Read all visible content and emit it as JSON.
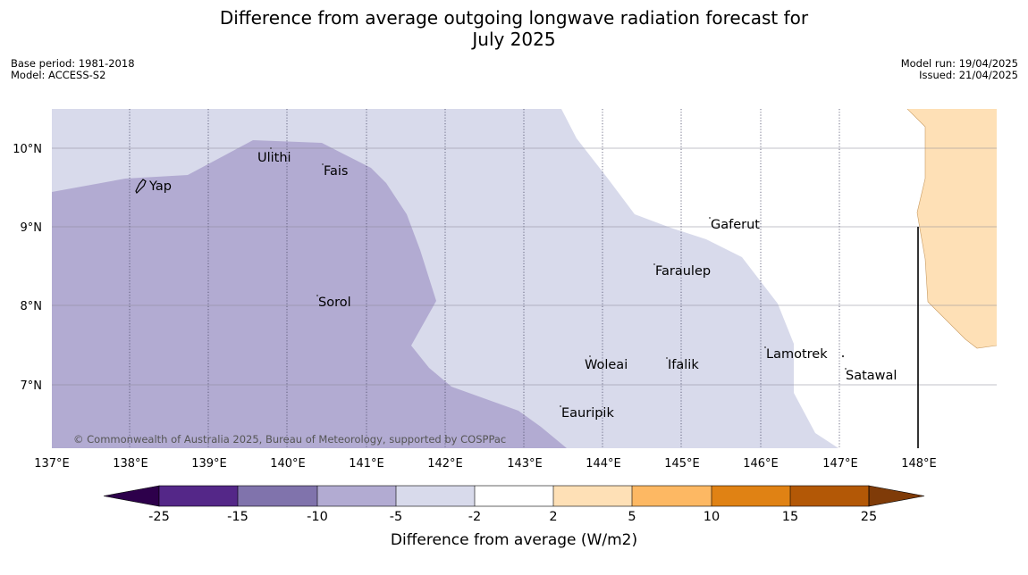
{
  "header": {
    "title_line1": "Difference from average outgoing longwave radiation forecast for",
    "title_line2": "July 2025",
    "base_period": "Base period: 1981-2018",
    "model": "Model: ACCESS-S2",
    "model_run": "Model run: 19/04/2025",
    "issued": "Issued: 21/04/2025"
  },
  "map": {
    "lon_labels": [
      "137°E",
      "138°E",
      "139°E",
      "140°E",
      "141°E",
      "142°E",
      "143°E",
      "144°E",
      "145°E",
      "146°E",
      "147°E",
      "148°E"
    ],
    "lat_labels": [
      "10°N",
      "9°N",
      "8°N",
      "7°N"
    ],
    "places": [
      "Ulithi",
      "Fais",
      "Yap",
      "Gaferut",
      "Faraulep",
      "Sorol",
      "Lamotrek",
      "Woleai",
      "Ifalik",
      "Satawal",
      "Eauripik"
    ],
    "copyright": "© Commonwealth of Australia 2025, Bureau of Meteorology, supported by COSPPac"
  },
  "legend": {
    "title": "Difference from average (W/m2)",
    "ticks": [
      "-25",
      "-15",
      "-10",
      "-5",
      "-2",
      "2",
      "5",
      "10",
      "15",
      "25"
    ],
    "colors": {
      "lt_-25": "#2d004b",
      "-25_-15": "#542788",
      "-15_-10": "#8073ac",
      "-10_-5": "#b2abd2",
      "-5_-2": "#d8daeb",
      "-2_2": "#ffffff",
      "2_5": "#fee0b6",
      "5_10": "#fdb863",
      "10_15": "#e08214",
      "15_25": "#b35806",
      "gt_25": "#7f3b08"
    }
  }
}
